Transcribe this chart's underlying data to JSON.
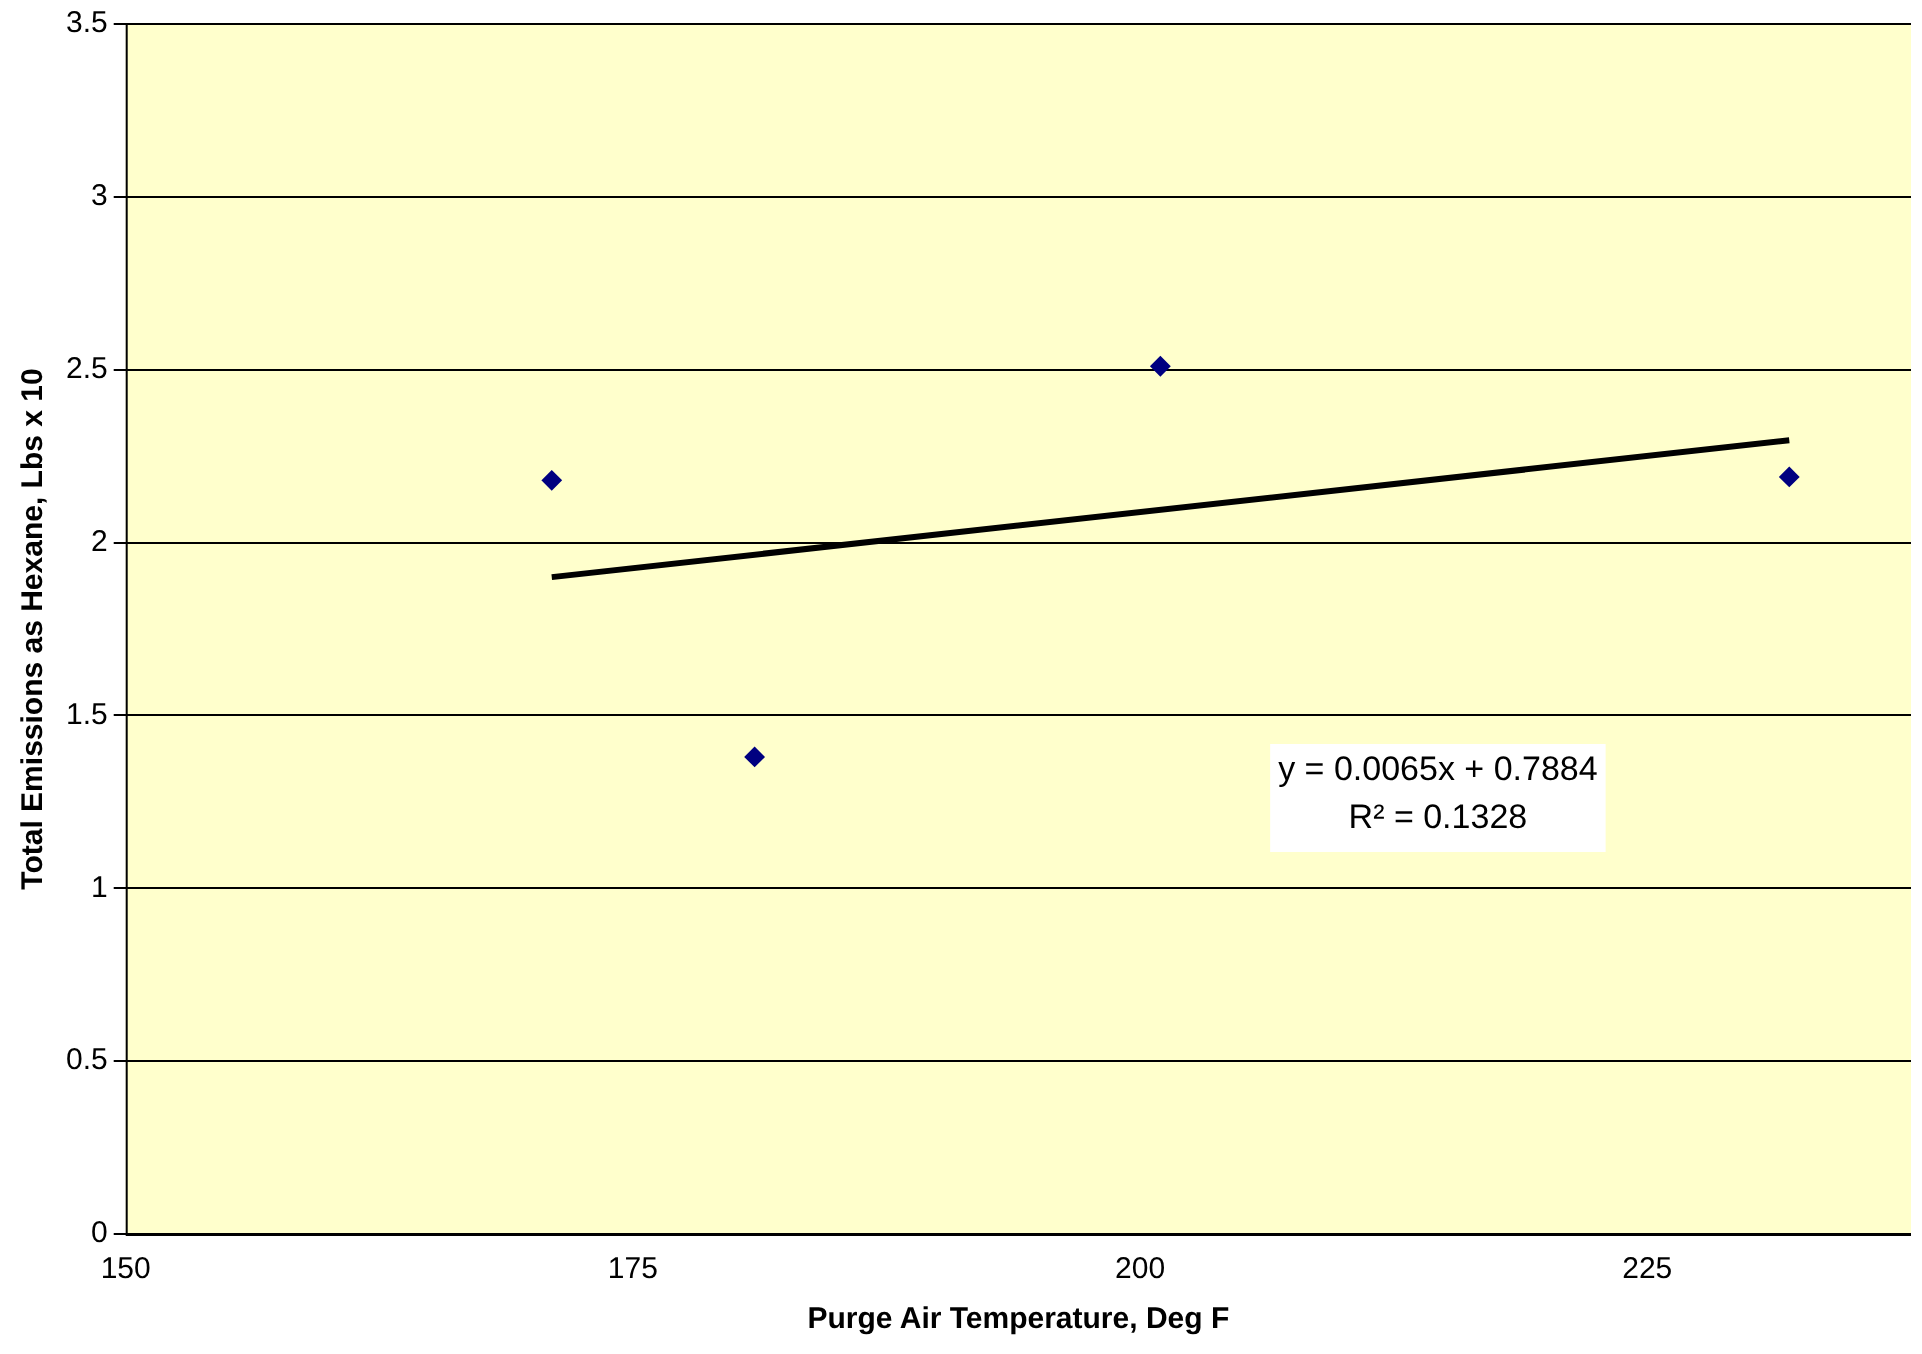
{
  "chart_data": {
    "type": "scatter",
    "xlabel": "Purge Air Temperature, Deg F",
    "ylabel": "Total Emissions as Hexane, Lbs x 10",
    "xlim": [
      150,
      238
    ],
    "xticks": [
      150,
      175,
      200,
      225
    ],
    "ylim": [
      0,
      3.5
    ],
    "yticks": [
      0,
      0.5,
      1,
      1.5,
      2,
      2.5,
      3,
      3.5
    ],
    "grid": "y",
    "legend": false,
    "marker": "diamond",
    "series": [
      {
        "type": "scatter",
        "color": "#000080",
        "x": [
          171,
          181,
          201,
          232
        ],
        "values": [
          2.18,
          1.38,
          2.51,
          2.19
        ]
      },
      {
        "type": "line",
        "color": "#000000",
        "x": [
          171,
          232
        ],
        "values": [
          1.9,
          2.296
        ],
        "marker": "none",
        "line_style": "solid"
      }
    ],
    "annotations": [
      "y = 0.0065x + 0.7884",
      "R² = 0.1328"
    ]
  }
}
